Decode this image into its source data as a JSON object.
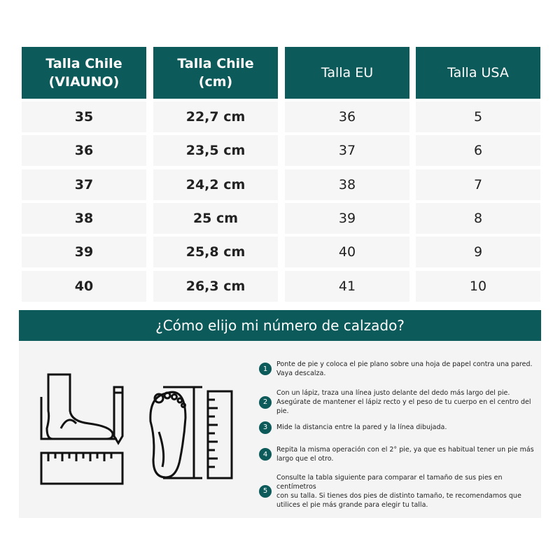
{
  "table": {
    "headers": [
      [
        "Talla Chile",
        "(VIAUNO)"
      ],
      [
        "Talla Chile",
        "(cm)"
      ],
      [
        "Talla EU"
      ],
      [
        "Talla USA"
      ]
    ],
    "rows": [
      [
        "35",
        "22,7 cm",
        "36",
        "5"
      ],
      [
        "36",
        "23,5 cm",
        "37",
        "6"
      ],
      [
        "37",
        "24,2 cm",
        "38",
        "7"
      ],
      [
        "38",
        "25 cm",
        "39",
        "8"
      ],
      [
        "39",
        "25,8 cm",
        "40",
        "9"
      ],
      [
        "40",
        "26,3 cm",
        "41",
        "10"
      ]
    ]
  },
  "guide": {
    "title": "¿Cómo elijo mi número de calzado?",
    "steps": [
      {
        "n": "1",
        "lines": [
          "Ponte de pie y coloca el pie plano sobre una hoja de papel contra una pared.",
          "Vaya descalza."
        ]
      },
      {
        "n": "2",
        "lines": [
          "Con un lápiz, traza una línea justo delante del  dedo más largo del pie.",
          "Asegúrate de mantener  el lápiz recto y el peso de tu cuerpo en el centro del pie."
        ]
      },
      {
        "n": "3",
        "lines": [
          "Mide la distancia entre la pared y la línea dibujada."
        ]
      },
      {
        "n": "4",
        "lines": [
          "Repita la misma operación con el 2° pie, ya que es habitual tener un pie más",
          "largo que el otro."
        ]
      },
      {
        "n": "5",
        "lines": [
          "Consulte la tabla siguiente para comparar el tamaño de sus pies en centímetros",
          "con su talla. Si tienes dos pies de distinto tamaño, te recomendamos que",
          "utilices el pie más grande para elegir tu talla."
        ]
      }
    ]
  },
  "colors": {
    "accent": "#0d5a5a",
    "row_bg": "#f6f6f6"
  }
}
